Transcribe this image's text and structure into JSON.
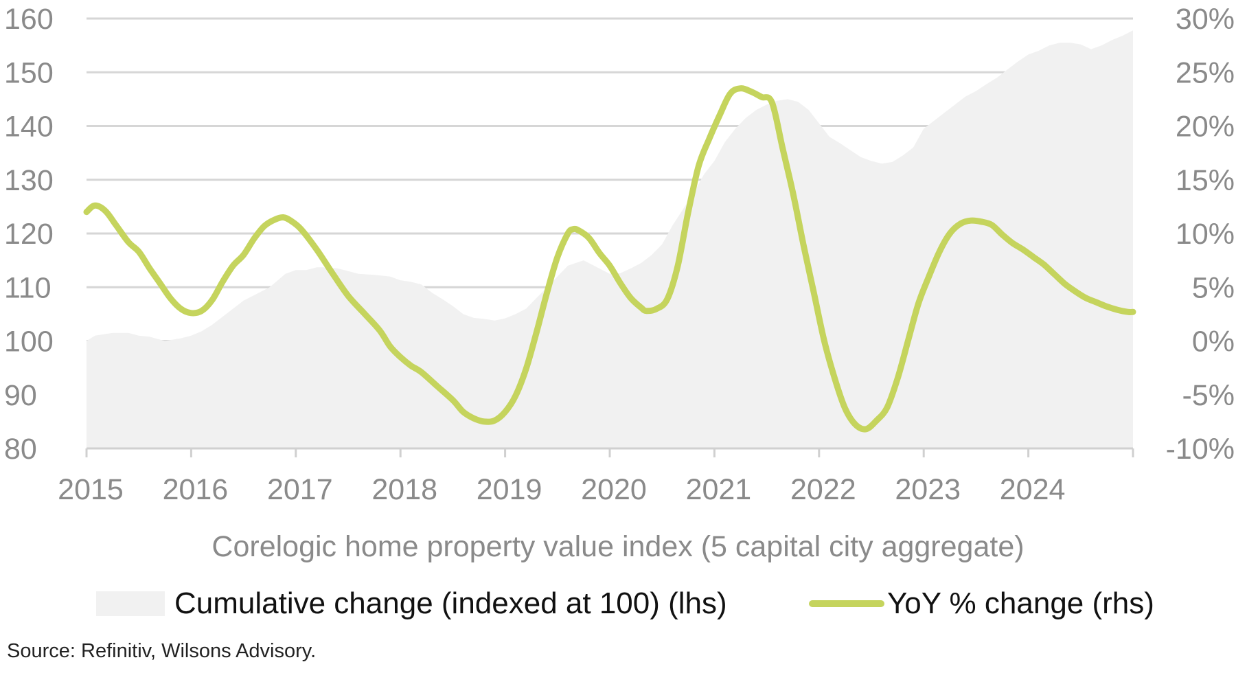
{
  "chart_data": {
    "type": "area+line",
    "title": "Corelogic home property value index (5 capital city aggregate)",
    "x_labels": [
      "2015",
      "2016",
      "2017",
      "2018",
      "2019",
      "2020",
      "2021",
      "2022",
      "2023",
      "2024"
    ],
    "x_range": [
      2015.0,
      2025.0
    ],
    "y_left": {
      "ticks": [
        "160",
        "150",
        "140",
        "130",
        "120",
        "110",
        "100",
        "90",
        "80"
      ],
      "range": [
        80,
        160
      ]
    },
    "y_right": {
      "ticks": [
        "30%",
        "25%",
        "20%",
        "15%",
        "10%",
        "5%",
        "0%",
        "-5%",
        "-10%"
      ],
      "range": [
        -10,
        30
      ]
    },
    "grid": true,
    "legend_position": "bottom",
    "series": [
      {
        "name": "Cumulative change (indexed at 100) (lhs)",
        "axis": "left",
        "style": "area",
        "color": "#f1f1f1",
        "points": [
          [
            2015.0,
            100
          ],
          [
            2015.08,
            101
          ],
          [
            2015.25,
            101.5
          ],
          [
            2015.4,
            101.5
          ],
          [
            2015.5,
            101
          ],
          [
            2015.6,
            100.8
          ],
          [
            2015.75,
            100
          ],
          [
            2015.9,
            100.5
          ],
          [
            2016.0,
            101
          ],
          [
            2016.1,
            101.8
          ],
          [
            2016.2,
            103
          ],
          [
            2016.3,
            104.5
          ],
          [
            2016.4,
            106
          ],
          [
            2016.5,
            107.5
          ],
          [
            2016.6,
            108.5
          ],
          [
            2016.75,
            110
          ],
          [
            2016.9,
            112.5
          ],
          [
            2017.0,
            113.2
          ],
          [
            2017.1,
            113.2
          ],
          [
            2017.2,
            113.7
          ],
          [
            2017.3,
            113.7
          ],
          [
            2017.4,
            113.5
          ],
          [
            2017.5,
            113
          ],
          [
            2017.6,
            112.5
          ],
          [
            2017.75,
            112.3
          ],
          [
            2017.9,
            112
          ],
          [
            2018.0,
            111.3
          ],
          [
            2018.1,
            111
          ],
          [
            2018.2,
            110.5
          ],
          [
            2018.3,
            109
          ],
          [
            2018.4,
            107.8
          ],
          [
            2018.5,
            106.5
          ],
          [
            2018.6,
            105
          ],
          [
            2018.7,
            104.3
          ],
          [
            2018.8,
            104.1
          ],
          [
            2018.9,
            103.8
          ],
          [
            2019.0,
            104.2
          ],
          [
            2019.1,
            105
          ],
          [
            2019.2,
            106
          ],
          [
            2019.3,
            108
          ],
          [
            2019.4,
            110
          ],
          [
            2019.5,
            112
          ],
          [
            2019.6,
            114
          ],
          [
            2019.75,
            115
          ],
          [
            2019.9,
            113.5
          ],
          [
            2020.0,
            112.5
          ],
          [
            2020.1,
            112.6
          ],
          [
            2020.2,
            113.5
          ],
          [
            2020.3,
            114.5
          ],
          [
            2020.4,
            116
          ],
          [
            2020.5,
            118
          ],
          [
            2020.6,
            121.5
          ],
          [
            2020.7,
            124.5
          ],
          [
            2020.8,
            127.5
          ],
          [
            2020.9,
            131
          ],
          [
            2021.0,
            133.5
          ],
          [
            2021.1,
            137
          ],
          [
            2021.2,
            139.5
          ],
          [
            2021.3,
            141.5
          ],
          [
            2021.4,
            143
          ],
          [
            2021.5,
            144
          ],
          [
            2021.6,
            144.7
          ],
          [
            2021.7,
            145
          ],
          [
            2021.8,
            144.5
          ],
          [
            2021.9,
            143
          ],
          [
            2022.0,
            140.5
          ],
          [
            2022.1,
            138
          ],
          [
            2022.2,
            136.8
          ],
          [
            2022.3,
            135.5
          ],
          [
            2022.4,
            134.2
          ],
          [
            2022.5,
            133.5
          ],
          [
            2022.6,
            133
          ],
          [
            2022.7,
            133.3
          ],
          [
            2022.8,
            134.5
          ],
          [
            2022.9,
            136
          ],
          [
            2023.0,
            139.5
          ],
          [
            2023.1,
            141
          ],
          [
            2023.2,
            142.5
          ],
          [
            2023.3,
            144
          ],
          [
            2023.4,
            145.5
          ],
          [
            2023.5,
            146.5
          ],
          [
            2023.6,
            147.8
          ],
          [
            2023.7,
            149
          ],
          [
            2023.8,
            150.5
          ],
          [
            2023.9,
            152
          ],
          [
            2024.0,
            153.3
          ],
          [
            2024.1,
            154
          ],
          [
            2024.2,
            155
          ],
          [
            2024.3,
            155.5
          ],
          [
            2024.4,
            155.5
          ],
          [
            2024.5,
            155.2
          ],
          [
            2024.6,
            154.3
          ],
          [
            2024.7,
            155
          ],
          [
            2024.8,
            156
          ],
          [
            2024.9,
            156.8
          ],
          [
            2025.0,
            157.8
          ]
        ]
      },
      {
        "name": "YoY % change (rhs)",
        "axis": "right",
        "style": "line",
        "color": "#c5d45d",
        "points": [
          [
            2015.0,
            12
          ],
          [
            2015.08,
            12.6
          ],
          [
            2015.18,
            12.1
          ],
          [
            2015.28,
            10.8
          ],
          [
            2015.4,
            9.2
          ],
          [
            2015.5,
            8.3
          ],
          [
            2015.6,
            6.8
          ],
          [
            2015.7,
            5.4
          ],
          [
            2015.8,
            4
          ],
          [
            2015.9,
            3
          ],
          [
            2016.0,
            2.6
          ],
          [
            2016.1,
            2.8
          ],
          [
            2016.2,
            3.8
          ],
          [
            2016.3,
            5.5
          ],
          [
            2016.4,
            7
          ],
          [
            2016.5,
            8
          ],
          [
            2016.6,
            9.5
          ],
          [
            2016.7,
            10.7
          ],
          [
            2016.8,
            11.3
          ],
          [
            2016.88,
            11.5
          ],
          [
            2016.95,
            11.2
          ],
          [
            2017.05,
            10.4
          ],
          [
            2017.2,
            8.5
          ],
          [
            2017.35,
            6.3
          ],
          [
            2017.5,
            4.2
          ],
          [
            2017.65,
            2.6
          ],
          [
            2017.8,
            1
          ],
          [
            2017.9,
            -0.5
          ],
          [
            2018.0,
            -1.5
          ],
          [
            2018.1,
            -2.3
          ],
          [
            2018.2,
            -2.9
          ],
          [
            2018.35,
            -4.2
          ],
          [
            2018.5,
            -5.5
          ],
          [
            2018.6,
            -6.6
          ],
          [
            2018.7,
            -7.2
          ],
          [
            2018.8,
            -7.5
          ],
          [
            2018.9,
            -7.4
          ],
          [
            2019.0,
            -6.6
          ],
          [
            2019.1,
            -5.1
          ],
          [
            2019.2,
            -2.6
          ],
          [
            2019.3,
            0.8
          ],
          [
            2019.4,
            4.5
          ],
          [
            2019.5,
            7.8
          ],
          [
            2019.6,
            10
          ],
          [
            2019.65,
            10.4
          ],
          [
            2019.7,
            10.3
          ],
          [
            2019.8,
            9.6
          ],
          [
            2019.9,
            8.2
          ],
          [
            2020.0,
            7
          ],
          [
            2020.1,
            5.4
          ],
          [
            2020.2,
            4
          ],
          [
            2020.3,
            3.1
          ],
          [
            2020.35,
            2.8
          ],
          [
            2020.45,
            3
          ],
          [
            2020.55,
            3.9
          ],
          [
            2020.65,
            7
          ],
          [
            2020.75,
            12
          ],
          [
            2020.85,
            16.3
          ],
          [
            2020.95,
            18.8
          ],
          [
            2021.05,
            21
          ],
          [
            2021.15,
            23
          ],
          [
            2021.25,
            23.5
          ],
          [
            2021.35,
            23.2
          ],
          [
            2021.45,
            22.7
          ],
          [
            2021.55,
            22.2
          ],
          [
            2021.65,
            18
          ],
          [
            2021.75,
            13.8
          ],
          [
            2021.85,
            9
          ],
          [
            2021.95,
            4.5
          ],
          [
            2022.05,
            0
          ],
          [
            2022.15,
            -3.5
          ],
          [
            2022.25,
            -6.3
          ],
          [
            2022.35,
            -7.8
          ],
          [
            2022.45,
            -8.2
          ],
          [
            2022.55,
            -7.4
          ],
          [
            2022.65,
            -6.2
          ],
          [
            2022.75,
            -3.5
          ],
          [
            2022.85,
            0
          ],
          [
            2022.95,
            3.5
          ],
          [
            2023.05,
            6
          ],
          [
            2023.15,
            8.3
          ],
          [
            2023.25,
            10
          ],
          [
            2023.35,
            10.9
          ],
          [
            2023.45,
            11.2
          ],
          [
            2023.55,
            11.1
          ],
          [
            2023.65,
            10.8
          ],
          [
            2023.75,
            9.9
          ],
          [
            2023.85,
            9.1
          ],
          [
            2023.95,
            8.5
          ],
          [
            2024.05,
            7.8
          ],
          [
            2024.15,
            7.1
          ],
          [
            2024.25,
            6.2
          ],
          [
            2024.35,
            5.3
          ],
          [
            2024.45,
            4.6
          ],
          [
            2024.55,
            4
          ],
          [
            2024.65,
            3.6
          ],
          [
            2024.75,
            3.2
          ],
          [
            2024.85,
            2.9
          ],
          [
            2024.95,
            2.7
          ],
          [
            2025.0,
            2.7
          ]
        ]
      }
    ]
  },
  "caption": "Corelogic home property value index (5 capital city aggregate)",
  "legend": {
    "area_label": "Cumulative change (indexed at 100) (lhs)",
    "line_label": "YoY % change (rhs)"
  },
  "source": "Source: Refinitiv, Wilsons Advisory."
}
